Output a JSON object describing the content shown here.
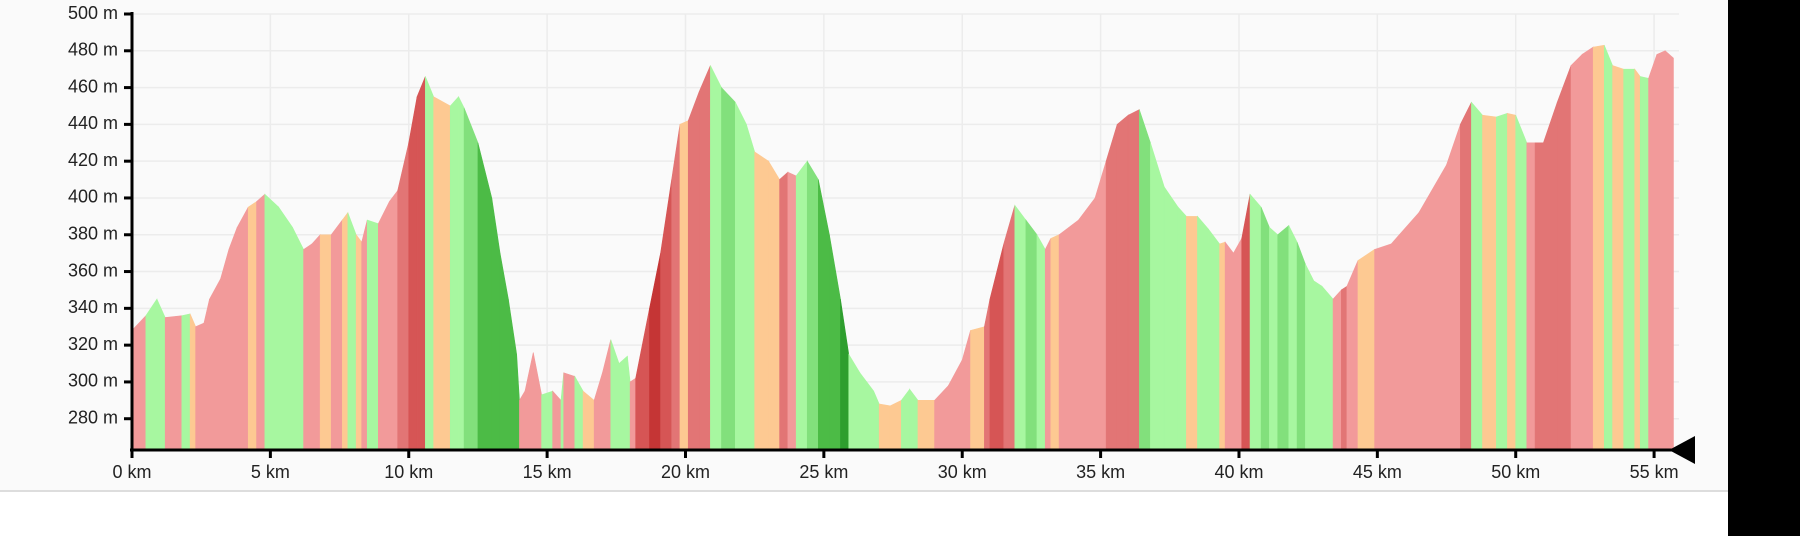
{
  "chart_data": {
    "type": "area",
    "x": [
      0,
      0.5,
      0.9,
      1.2,
      1.8,
      2.1,
      2.3,
      2.6,
      2.8,
      3.2,
      3.5,
      3.8,
      4.2,
      4.5,
      4.8,
      5.3,
      5.8,
      6.2,
      6.5,
      6.8,
      7.2,
      7.6,
      7.8,
      8.1,
      8.3,
      8.5,
      8.9,
      9.3,
      9.6,
      10.0,
      10.3,
      10.6,
      10.9,
      11.5,
      11.8,
      12.0,
      12.5,
      13.0,
      13.3,
      13.6,
      13.9,
      14.0,
      14.2,
      14.5,
      14.8,
      15.2,
      15.5,
      15.6,
      16.0,
      16.3,
      16.7,
      17.0,
      17.3,
      17.6,
      17.9,
      18.0,
      18.2,
      18.7,
      19.1,
      19.5,
      19.8,
      20.1,
      20.5,
      20.9,
      21.3,
      21.8,
      22.2,
      22.5,
      23.0,
      23.4,
      23.7,
      24.0,
      24.4,
      24.8,
      25.2,
      25.6,
      25.9,
      26.3,
      26.8,
      27.0,
      27.4,
      27.8,
      28.1,
      28.4,
      29.0,
      29.5,
      30.0,
      30.3,
      30.8,
      31.0,
      31.5,
      31.9,
      32.3,
      32.7,
      33.0,
      33.2,
      33.5,
      34.2,
      34.8,
      35.2,
      35.6,
      36.0,
      36.4,
      36.8,
      37.3,
      37.8,
      38.1,
      38.5,
      38.9,
      39.3,
      39.5,
      39.8,
      40.1,
      40.4,
      40.8,
      41.1,
      41.4,
      41.8,
      42.1,
      42.4,
      42.7,
      43.0,
      43.4,
      43.7,
      43.9,
      44.3,
      44.9,
      45.5,
      46.5,
      47.5,
      48.0,
      48.4,
      48.8,
      49.3,
      49.7,
      50.0,
      50.4,
      50.7,
      51.0,
      51.5,
      52.0,
      52.4,
      52.8,
      53.2,
      53.5,
      53.9,
      54.3,
      54.5,
      54.8,
      55.1,
      55.4,
      55.7
    ],
    "values": [
      328,
      336,
      345,
      335,
      336,
      337,
      330,
      332,
      345,
      356,
      372,
      384,
      395,
      398,
      402,
      395,
      384,
      372,
      375,
      380,
      380,
      388,
      392,
      380,
      376,
      388,
      386,
      398,
      404,
      430,
      455,
      466,
      455,
      450,
      455,
      449,
      430,
      400,
      370,
      345,
      315,
      290,
      295,
      316,
      293,
      295,
      290,
      305,
      303,
      295,
      290,
      305,
      323,
      310,
      314,
      300,
      302,
      340,
      370,
      410,
      440,
      442,
      458,
      472,
      460,
      452,
      440,
      425,
      420,
      410,
      414,
      412,
      420,
      410,
      380,
      345,
      315,
      305,
      295,
      288,
      287,
      290,
      296,
      290,
      290,
      298,
      312,
      328,
      330,
      345,
      375,
      396,
      388,
      380,
      372,
      378,
      380,
      388,
      400,
      420,
      440,
      445,
      448,
      430,
      406,
      395,
      390,
      390,
      383,
      375,
      376,
      370,
      378,
      402,
      395,
      384,
      380,
      385,
      376,
      364,
      355,
      352,
      345,
      350,
      352,
      366,
      372,
      375,
      392,
      418,
      440,
      452,
      445,
      444,
      446,
      445,
      430,
      430,
      430,
      452,
      472,
      478,
      482,
      483,
      472,
      470,
      470,
      466,
      465,
      478,
      480,
      476
    ],
    "segment_colors": [
      "#f29a9a",
      "#a7f7a0",
      "#a7f7a0",
      "#f29a9a",
      "#a7f7a0",
      "#fdc992",
      "#f29a9a",
      "#f29a9a",
      "#f29a9a",
      "#f29a9a",
      "#f29a9a",
      "#f29a9a",
      "#fdc992",
      "#f29a9a",
      "#a7f7a0",
      "#a7f7a0",
      "#a7f7a0",
      "#f29a9a",
      "#f29a9a",
      "#fdc992",
      "#f29a9a",
      "#fdc992",
      "#a7f7a0",
      "#fdc992",
      "#f29a9a",
      "#a7f7a0",
      "#f29a9a",
      "#f29a9a",
      "#e27575",
      "#d65555",
      "#d65555",
      "#a7f7a0",
      "#fdc992",
      "#a7f7a0",
      "#a7f7a0",
      "#82e07c",
      "#4cbb46",
      "#4cbb46",
      "#4cbb46",
      "#4cbb46",
      "#4cbb46",
      "#f29a9a",
      "#f29a9a",
      "#f29a9a",
      "#a7f7a0",
      "#f29a9a",
      "#a7f7a0",
      "#f29a9a",
      "#a7f7a0",
      "#fdc992",
      "#f29a9a",
      "#f29a9a",
      "#a7f7a0",
      "#a7f7a0",
      "#a7f7a0",
      "#f29a9a",
      "#d65555",
      "#c53535",
      "#d65555",
      "#e27575",
      "#fdc992",
      "#e27575",
      "#e27575",
      "#a7f7a0",
      "#82e07c",
      "#a7f7a0",
      "#a7f7a0",
      "#fdc992",
      "#fdc992",
      "#e27575",
      "#f29a9a",
      "#a7f7a0",
      "#82e07c",
      "#4cbb46",
      "#4cbb46",
      "#2e9e2e",
      "#a7f7a0",
      "#a7f7a0",
      "#a7f7a0",
      "#fdc992",
      "#fdc992",
      "#a7f7a0",
      "#a7f7a0",
      "#fdc992",
      "#f29a9a",
      "#f29a9a",
      "#f29a9a",
      "#fdc992",
      "#e27575",
      "#d65555",
      "#e27575",
      "#a7f7a0",
      "#82e07c",
      "#a7f7a0",
      "#f29a9a",
      "#fdc992",
      "#f29a9a",
      "#f29a9a",
      "#f29a9a",
      "#e27575",
      "#e27575",
      "#e27575",
      "#82e07c",
      "#a7f7a0",
      "#a7f7a0",
      "#a7f7a0",
      "#fdc992",
      "#a7f7a0",
      "#a7f7a0",
      "#fdc992",
      "#f29a9a",
      "#f29a9a",
      "#d65555",
      "#a7f7a0",
      "#82e07c",
      "#a7f7a0",
      "#82e07c",
      "#a7f7a0",
      "#82e07c",
      "#a7f7a0",
      "#a7f7a0",
      "#a7f7a0",
      "#f29a9a",
      "#e27575",
      "#f29a9a",
      "#fdc992",
      "#f29a9a",
      "#f29a9a",
      "#f29a9a",
      "#f29a9a",
      "#e27575",
      "#a7f7a0",
      "#fdc992",
      "#a7f7a0",
      "#fdc992",
      "#a7f7a0",
      "#f29a9a",
      "#e27575",
      "#e27575",
      "#e27575",
      "#f29a9a",
      "#f29a9a",
      "#fdc992",
      "#a7f7a0",
      "#fdc992",
      "#a7f7a0",
      "#fdc992",
      "#a7f7a0",
      "#f29a9a",
      "#f29a9a",
      "#f29a9a"
    ],
    "xlim": [
      0,
      55.9
    ],
    "ylim": [
      263,
      500
    ],
    "xticks": [
      {
        "value": 0,
        "label": "0 km"
      },
      {
        "value": 5,
        "label": "5 km"
      },
      {
        "value": 10,
        "label": "10 km"
      },
      {
        "value": 15,
        "label": "15 km"
      },
      {
        "value": 20,
        "label": "20 km"
      },
      {
        "value": 25,
        "label": "25 km"
      },
      {
        "value": 30,
        "label": "30 km"
      },
      {
        "value": 35,
        "label": "35 km"
      },
      {
        "value": 40,
        "label": "40 km"
      },
      {
        "value": 45,
        "label": "45 km"
      },
      {
        "value": 50,
        "label": "50 km"
      },
      {
        "value": 55,
        "label": "55 km"
      }
    ],
    "yticks": [
      {
        "value": 280,
        "label": "280 m"
      },
      {
        "value": 300,
        "label": "300 m"
      },
      {
        "value": 320,
        "label": "320 m"
      },
      {
        "value": 340,
        "label": "340 m"
      },
      {
        "value": 360,
        "label": "360 m"
      },
      {
        "value": 380,
        "label": "380 m"
      },
      {
        "value": 400,
        "label": "400 m"
      },
      {
        "value": 420,
        "label": "420 m"
      },
      {
        "value": 440,
        "label": "440 m"
      },
      {
        "value": 460,
        "label": "460 m"
      },
      {
        "value": 480,
        "label": "480 m"
      },
      {
        "value": 500,
        "label": "500 m"
      }
    ],
    "grid": true
  }
}
